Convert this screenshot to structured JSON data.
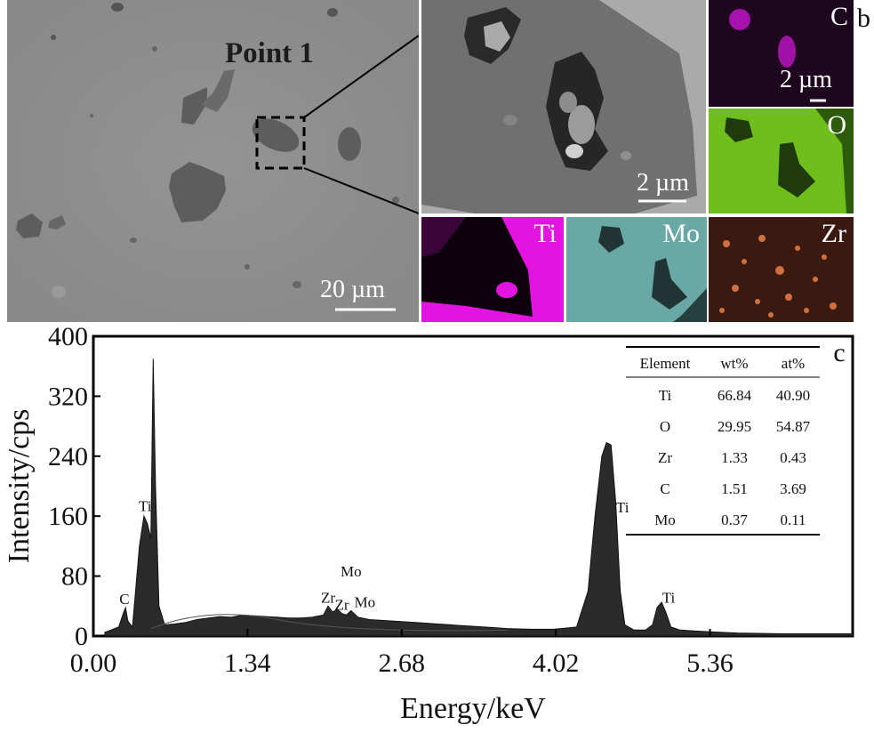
{
  "sem": {
    "panel_b_label": "b",
    "point_label": "Point 1",
    "scale_main": "20 µm",
    "scale_zoom": "2 µm",
    "scale_map": "2 µm"
  },
  "maps": [
    {
      "element": "C",
      "color": "#c014c8"
    },
    {
      "element": "O",
      "color": "#6fbf1c"
    },
    {
      "element": "Ti",
      "color": "#e414e0"
    },
    {
      "element": "Mo",
      "color": "#6aa8a6"
    },
    {
      "element": "Zr",
      "color": "#d0703e"
    }
  ],
  "chart_data": {
    "type": "line",
    "panel_label": "c",
    "title": "",
    "xlabel": "Energy/keV",
    "ylabel": "Intensity/cps",
    "xlim": [
      0,
      6.6
    ],
    "ylim": [
      0,
      400
    ],
    "xticks": [
      "0.00",
      "1.34",
      "2.68",
      "4.02",
      "5.36"
    ],
    "yticks": [
      "0",
      "80",
      "160",
      "240",
      "320",
      "400"
    ],
    "series": [
      {
        "x": [
          0.1,
          0.22,
          0.26,
          0.28,
          0.3,
          0.34,
          0.4,
          0.44,
          0.47,
          0.5,
          0.52,
          0.54,
          0.57,
          0.62,
          0.7,
          0.8,
          0.9,
          1.0,
          1.1,
          1.2,
          1.3,
          1.4,
          1.5,
          1.6,
          1.7,
          1.8,
          1.9,
          2.0,
          2.04,
          2.08,
          2.12,
          2.16,
          2.2,
          2.24,
          2.3,
          2.4,
          2.6,
          2.8,
          3.0,
          3.2,
          3.4,
          3.6,
          3.8,
          4.0,
          4.2,
          4.3,
          4.36,
          4.42,
          4.46,
          4.5,
          4.54,
          4.58,
          4.62,
          4.7,
          4.8,
          4.86,
          4.9,
          4.94,
          4.98,
          5.02,
          5.1,
          5.3,
          5.6,
          6.0,
          6.4,
          6.6
        ],
        "y": [
          5,
          12,
          30,
          38,
          20,
          12,
          120,
          160,
          150,
          130,
          370,
          200,
          40,
          15,
          16,
          18,
          22,
          24,
          26,
          25,
          28,
          27,
          26,
          25,
          24,
          24,
          25,
          28,
          40,
          32,
          36,
          30,
          28,
          34,
          25,
          22,
          20,
          18,
          16,
          14,
          12,
          10,
          9,
          9,
          12,
          60,
          160,
          240,
          258,
          255,
          180,
          60,
          15,
          8,
          8,
          15,
          38,
          45,
          30,
          12,
          8,
          6,
          4,
          3,
          3,
          3
        ]
      }
    ],
    "peak_labels": [
      {
        "text": "C",
        "x": 0.27,
        "y": 38
      },
      {
        "text": "Ti",
        "x": 0.45,
        "y": 162
      },
      {
        "text": "Zr",
        "x": 2.04,
        "y": 40
      },
      {
        "text": "Zr",
        "x": 2.16,
        "y": 30
      },
      {
        "text": "Mo",
        "x": 2.24,
        "y": 75
      },
      {
        "text": "Mo",
        "x": 2.36,
        "y": 34
      },
      {
        "text": "Ti",
        "x": 4.6,
        "y": 160
      },
      {
        "text": "Ti",
        "x": 5.0,
        "y": 40
      }
    ],
    "table": {
      "headers": [
        "Element",
        "wt%",
        "at%"
      ],
      "rows": [
        [
          "Ti",
          "66.84",
          "40.90"
        ],
        [
          "O",
          "29.95",
          "54.87"
        ],
        [
          "Zr",
          "1.33",
          "0.43"
        ],
        [
          "C",
          "1.51",
          "3.69"
        ],
        [
          "Mo",
          "0.37",
          "0.11"
        ]
      ]
    }
  }
}
